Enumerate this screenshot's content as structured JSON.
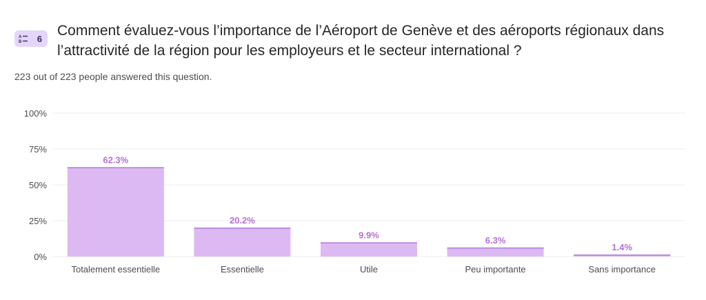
{
  "question": {
    "number": "6",
    "icon": "multiple-choice-icon",
    "title": "Comment évaluez-vous l’importance de l’Aéroport de Genève et des aéroports régionaux dans l’attractivité de la région pour les employeurs et le secteur international ?",
    "answered_text": "223 out of 223 people answered this question."
  },
  "colors": {
    "bar_fill": "#dcb9f3",
    "bar_top": "#b07ad9",
    "label": "#b56fd8",
    "grid": "#ececec",
    "axis_text": "#4d4d4f"
  },
  "chart_data": {
    "type": "bar",
    "title": "",
    "xlabel": "",
    "ylabel": "",
    "categories": [
      "Totalement essentielle",
      "Essentielle",
      "Utile",
      "Peu importante",
      "Sans importance"
    ],
    "values": [
      62.3,
      20.2,
      9.9,
      6.3,
      1.4
    ],
    "value_labels": [
      "62.3%",
      "20.2%",
      "9.9%",
      "6.3%",
      "1.4%"
    ],
    "yticks": [
      0,
      25,
      50,
      75,
      100
    ],
    "ytick_labels": [
      "0%",
      "25%",
      "50%",
      "75%",
      "100%"
    ],
    "ylim": [
      0,
      100
    ],
    "grid": true
  }
}
